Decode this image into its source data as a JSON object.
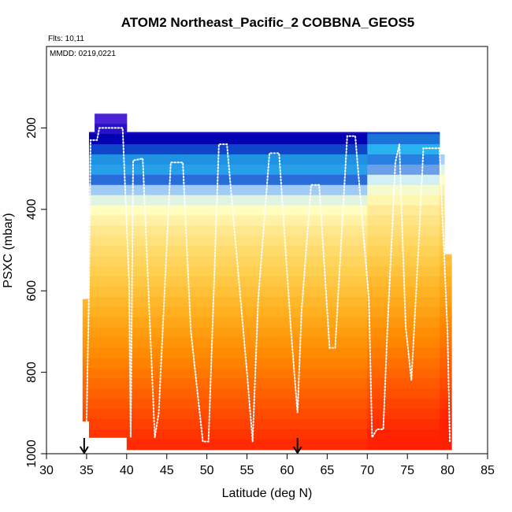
{
  "chart_data": {
    "type": "heatmap",
    "title": "ATOM2 Northeast_Pacific_2 COBBNA_GEOS5",
    "annotations": [
      "Flts: 10,11",
      "MMDD: 0219,0221"
    ],
    "xlabel": "Latitude (deg N)",
    "ylabel": "PSXC (mbar)",
    "xlim": [
      30,
      85
    ],
    "ylim": [
      1000,
      0
    ],
    "y_reversed": true,
    "x_ticks": [
      30,
      35,
      40,
      45,
      50,
      55,
      60,
      65,
      70,
      75,
      80,
      85
    ],
    "y_ticks": [
      200,
      400,
      600,
      800,
      1000
    ],
    "grid": false,
    "markers": [
      {
        "type": "down-arrow",
        "x": 34.7,
        "y": 1000
      },
      {
        "type": "down-arrow",
        "x": 61.3,
        "y": 1000
      }
    ],
    "columns": [
      {
        "x0": 34.5,
        "x1": 35.3,
        "ptop": 620,
        "pbot": 920
      },
      {
        "x0": 35.3,
        "x1": 36.0,
        "ptop": 210,
        "pbot": 960
      },
      {
        "x0": 36.0,
        "x1": 38.0,
        "ptop": 165,
        "pbot": 960
      },
      {
        "x0": 38.0,
        "x1": 39.0,
        "ptop": 165,
        "pbot": 960
      },
      {
        "x0": 39.0,
        "x1": 40.0,
        "ptop": 165,
        "pbot": 960
      },
      {
        "x0": 40.0,
        "x1": 60.0,
        "ptop": 210,
        "pbot": 1000
      },
      {
        "x0": 60.0,
        "x1": 70.0,
        "ptop": 210,
        "pbot": 1000
      },
      {
        "x0": 70.0,
        "x1": 79.0,
        "ptop": 210,
        "pbot": 1000
      },
      {
        "x0": 79.0,
        "x1": 79.6,
        "ptop": 265,
        "pbot": 1000
      },
      {
        "x0": 79.6,
        "x1": 80.5,
        "ptop": 510,
        "pbot": 1000
      }
    ],
    "color_stops": [
      {
        "p": 165,
        "color": "#5a2de0"
      },
      {
        "p": 230,
        "color": "#0000b0"
      },
      {
        "p": 290,
        "color": "#28b8f0"
      },
      {
        "p": 330,
        "color": "#2868d8"
      },
      {
        "p": 360,
        "color": "#c8ecff"
      },
      {
        "p": 400,
        "color": "#ffffc0"
      },
      {
        "p": 450,
        "color": "#ffe890"
      },
      {
        "p": 550,
        "color": "#ffd050"
      },
      {
        "p": 650,
        "color": "#ffb020"
      },
      {
        "p": 760,
        "color": "#ff8800"
      },
      {
        "p": 880,
        "color": "#ff5500"
      },
      {
        "p": 1000,
        "color": "#ff2000"
      }
    ],
    "flight_track": [
      {
        "x": 35.0,
        "y": 920
      },
      {
        "x": 35.3,
        "y": 600
      },
      {
        "x": 35.5,
        "y": 230
      },
      {
        "x": 36.3,
        "y": 230
      },
      {
        "x": 36.6,
        "y": 200
      },
      {
        "x": 39.5,
        "y": 200
      },
      {
        "x": 40.3,
        "y": 580
      },
      {
        "x": 40.5,
        "y": 960
      },
      {
        "x": 40.8,
        "y": 280
      },
      {
        "x": 42.0,
        "y": 275
      },
      {
        "x": 43.5,
        "y": 960
      },
      {
        "x": 44.0,
        "y": 900
      },
      {
        "x": 45.5,
        "y": 285
      },
      {
        "x": 47.0,
        "y": 285
      },
      {
        "x": 48.0,
        "y": 700
      },
      {
        "x": 49.5,
        "y": 970
      },
      {
        "x": 50.2,
        "y": 970
      },
      {
        "x": 51.5,
        "y": 240
      },
      {
        "x": 52.5,
        "y": 240
      },
      {
        "x": 55.0,
        "y": 800
      },
      {
        "x": 55.7,
        "y": 970
      },
      {
        "x": 56.4,
        "y": 620
      },
      {
        "x": 57.8,
        "y": 262
      },
      {
        "x": 59.0,
        "y": 262
      },
      {
        "x": 60.5,
        "y": 700
      },
      {
        "x": 61.3,
        "y": 900
      },
      {
        "x": 61.8,
        "y": 650
      },
      {
        "x": 63.0,
        "y": 340
      },
      {
        "x": 64.0,
        "y": 340
      },
      {
        "x": 65.3,
        "y": 740
      },
      {
        "x": 66.0,
        "y": 740
      },
      {
        "x": 67.5,
        "y": 220
      },
      {
        "x": 68.5,
        "y": 220
      },
      {
        "x": 70.2,
        "y": 620
      },
      {
        "x": 70.6,
        "y": 960
      },
      {
        "x": 71.2,
        "y": 940
      },
      {
        "x": 72.0,
        "y": 940
      },
      {
        "x": 72.5,
        "y": 700
      },
      {
        "x": 73.5,
        "y": 285
      },
      {
        "x": 74.0,
        "y": 240
      },
      {
        "x": 74.3,
        "y": 420
      },
      {
        "x": 74.8,
        "y": 690
      },
      {
        "x": 75.5,
        "y": 820
      },
      {
        "x": 76.5,
        "y": 450
      },
      {
        "x": 77.0,
        "y": 250
      },
      {
        "x": 79.0,
        "y": 250
      },
      {
        "x": 80.0,
        "y": 700
      },
      {
        "x": 80.3,
        "y": 970
      }
    ]
  }
}
